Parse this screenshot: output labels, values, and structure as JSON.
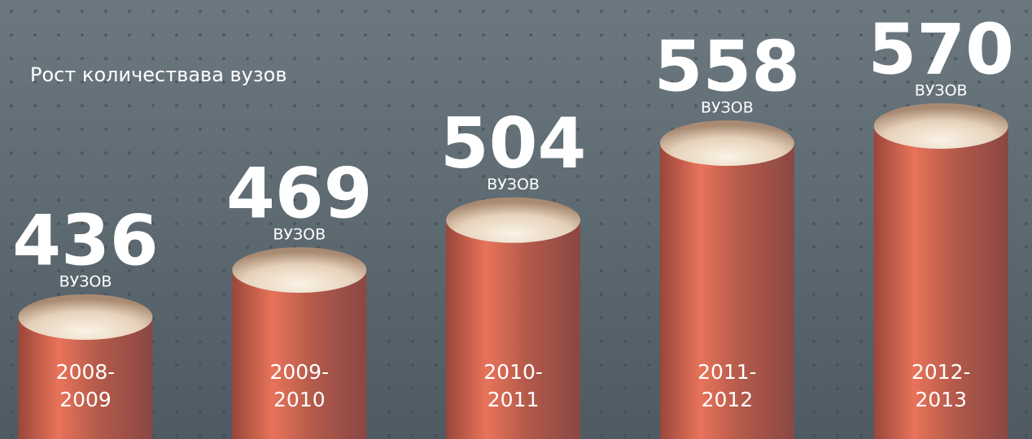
{
  "chart_data": {
    "type": "bar",
    "title": "Рост количествава вузов",
    "categories": [
      "2008-2009",
      "2009-2010",
      "2010-2011",
      "2011-2012",
      "2012-2013"
    ],
    "values": [
      436,
      469,
      504,
      558,
      570
    ],
    "unit": "ВУЗОВ",
    "color": "#e8735a"
  }
}
